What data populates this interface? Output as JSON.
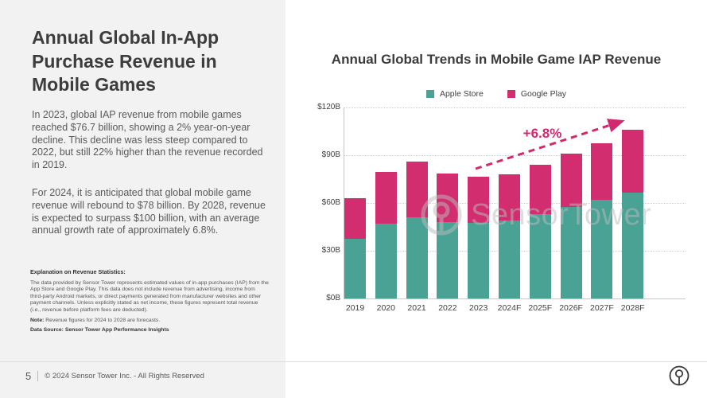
{
  "left_panel": {
    "title": "Annual Global In-App Purchase Revenue in Mobile Games",
    "paragraph1": "In 2023, global IAP revenue  from mobile games reached $76.7 billion, showing a 2% year-on-year decline. This decline was less steep compared to 2022, but still 22% higher than the revenue recorded in 2019.",
    "paragraph2": "For 2024, it is anticipated that global mobile game revenue will rebound to $78 billion. By 2028, revenue is expected to surpass $100 billion, with an average annual growth rate of approximately 6.8%.",
    "explanation_heading": "Explanation on Revenue Statistics:",
    "explanation_body": "The data provided by Sensor Tower represents estimated values of in-app purchases (IAP) from the App Store and Google Play. This data does not include revenue from advertising, income from third-party Android markets, or direct payments generated from manufacturer websites and other payment channels. Unless explicitly stated as net income, these figures represent total revenue (i.e., revenue before platform fees are deducted).",
    "note_label": "Note:",
    "note_text": " Revenue figures for 2024 to 2028 are forecasts.",
    "data_source": "Data Source: Sensor Tower App Performance Insights"
  },
  "chart_data": {
    "type": "bar",
    "stacked": true,
    "title": "Annual Global Trends in Mobile Game IAP Revenue",
    "categories": [
      "2019",
      "2020",
      "2021",
      "2022",
      "2023",
      "2024F",
      "2025F",
      "2026F",
      "2027F",
      "2028F"
    ],
    "series": [
      {
        "name": "Apple Store",
        "color": "#49a294",
        "values": [
          37.5,
          47,
          51,
          48,
          47.7,
          49,
          53,
          57.5,
          62,
          66.5
        ]
      },
      {
        "name": "Google Play",
        "color": "#d22d6e",
        "values": [
          25.5,
          32.5,
          35,
          30.5,
          29,
          29,
          31,
          33.5,
          35.5,
          39.5
        ]
      }
    ],
    "totals": [
      63,
      79.5,
      86,
      78.5,
      76.7,
      78,
      84,
      91,
      97.5,
      106
    ],
    "ylabel": "",
    "xlabel": "",
    "ylim": [
      0,
      120
    ],
    "ytick_values": [
      120,
      90,
      60,
      30,
      0
    ],
    "ytick_labels": [
      "$120B",
      "$90B",
      "$60B",
      "$30B",
      "$0B"
    ],
    "grid": "dotted-horizontal",
    "legend_position": "top",
    "annotation": {
      "label": "+6.8%",
      "color": "#d0296d"
    }
  },
  "watermark": {
    "text": "SensorTower"
  },
  "footer": {
    "page_number": "5",
    "copyright": "© 2024 Sensor Tower Inc. - All Rights Reserved"
  },
  "colors": {
    "left_panel_bg": "#f2f2f2",
    "title_text": "#3d3d3d",
    "body_text": "#595959",
    "apple_store": "#49a294",
    "google_play": "#d22d6e",
    "annotation": "#d0296d",
    "gridline": "#cfcfcf",
    "watermark": "#bdbdbd"
  }
}
